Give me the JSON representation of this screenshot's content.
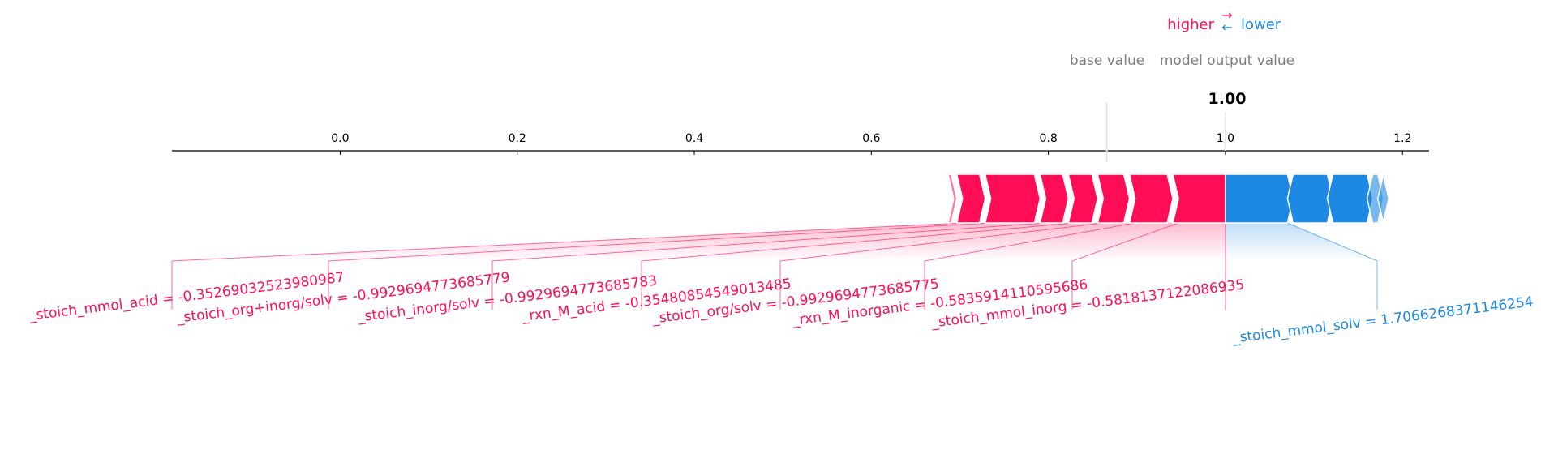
{
  "legend": {
    "higher_label": "higher",
    "lower_label": "lower",
    "higher_arrow": "→",
    "lower_arrow": "←"
  },
  "header": {
    "base_value_label": "base value",
    "model_output_label": "model output value",
    "output_value_text": "1.00"
  },
  "colors": {
    "positive": "#ff0d57",
    "negative": "#1e88e5",
    "muted_text": "#808080",
    "axis": "#000000"
  },
  "chart_data": {
    "type": "force",
    "base_value": 0.866,
    "output_value": 1.0,
    "xlim": [
      -0.19,
      1.23
    ],
    "ticks": [
      0.0,
      0.2,
      0.4,
      0.6,
      0.8,
      1.0,
      1.2
    ],
    "tick_labels": [
      "0.0",
      "0.2",
      "0.4",
      "0.6",
      "0.8",
      "1.0",
      "1.2"
    ],
    "positive_features": [
      {
        "label": "_stoich_mmol_inorg = -0.5818137122086935",
        "start": 0.947,
        "end": 1.0
      },
      {
        "label": "_rxn_M_inorganic = -0.5835914110595686",
        "start": 0.898,
        "end": 0.947
      },
      {
        "label": "_stoich_org/solv = -0.9929694773685775",
        "start": 0.862,
        "end": 0.898
      },
      {
        "label": "_rxn_M_acid = -0.35480854549013485",
        "start": 0.829,
        "end": 0.862
      },
      {
        "label": "_stoich_inorg/solv = -0.9929694773685783",
        "start": 0.797,
        "end": 0.829
      },
      {
        "label": "_stoich_org+inorg/solv = -0.9929694773685779",
        "start": 0.735,
        "end": 0.797
      },
      {
        "label": "_stoich_mmol_acid = -0.35269032523980987",
        "start": 0.703,
        "end": 0.735
      },
      {
        "label": "",
        "start": 0.693,
        "end": 0.703
      },
      {
        "label": "",
        "start": 0.686,
        "end": 0.693
      },
      {
        "label": "",
        "start": 0.68,
        "end": 0.686
      }
    ],
    "negative_features": [
      {
        "label": "_stoich_mmol_solv = 1.7066268371146254",
        "start": 1.0,
        "end": 1.07
      },
      {
        "label": "",
        "start": 1.07,
        "end": 1.115
      },
      {
        "label": "",
        "start": 1.115,
        "end": 1.16
      },
      {
        "label": "",
        "start": 1.16,
        "end": 1.172
      },
      {
        "label": "",
        "start": 1.172,
        "end": 1.178
      }
    ]
  }
}
